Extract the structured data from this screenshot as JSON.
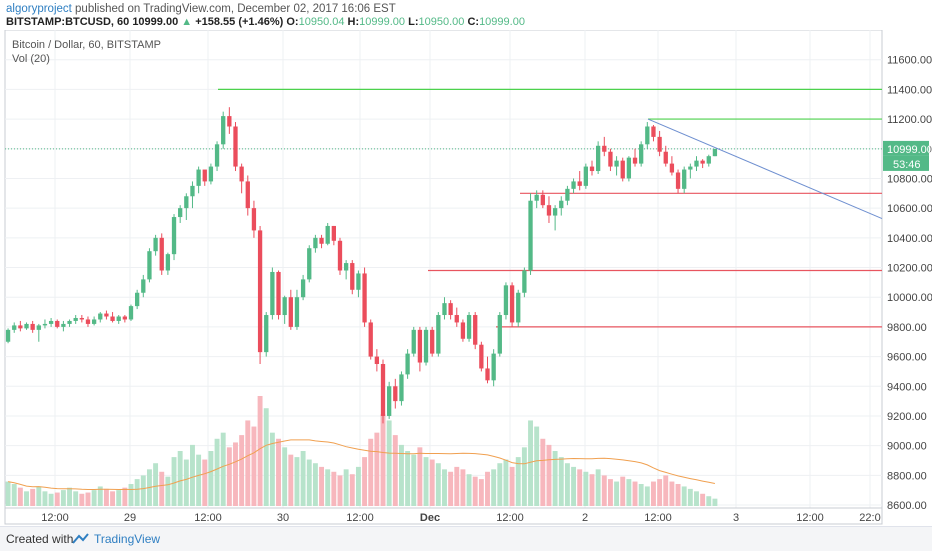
{
  "header": {
    "author": "algoryproject",
    "published_text": " published on TradingView.com, December 02, 2017 16:06 EST",
    "symbol": "BITSTAMP:BTCUSD, 60",
    "last": "10999.00",
    "change": "+158.55 (+1.46%)",
    "o_label": "O:",
    "o_val": "10950.04",
    "h_label": "H:",
    "h_val": "10999.00",
    "l_label": "L:",
    "l_val": "10950.00",
    "c_label": "C:",
    "c_val": "10999.00"
  },
  "legend": {
    "title": "Bitcoin / Dollar, 60, BITSTAMP",
    "volume": "Vol (20)"
  },
  "footer": {
    "created": "Created with",
    "brand": "TradingView"
  },
  "colors": {
    "up": "#53b987",
    "down": "#eb4d5c",
    "vol_up": "#b7e3cb",
    "vol_down": "#f7b7bd",
    "vol_ma": "#f0a050",
    "support": "#e8555f",
    "resistance": "#4cd24c",
    "trendline": "#6e8fd0",
    "price_line": "#53b987"
  },
  "chart_data": {
    "type": "candlestick",
    "title": "Bitcoin / Dollar, 60, BITSTAMP",
    "y_ticks": [
      "11600.00",
      "11400.00",
      "11200.00",
      "11000.00",
      "10800.00",
      "10600.00",
      "10400.00",
      "10200.00",
      "10000.00",
      "9800.00",
      "9600.00",
      "9400.00",
      "9200.00",
      "9000.00",
      "8800.00",
      "8600.00"
    ],
    "ylim": [
      8580,
      11800
    ],
    "x_ticks": [
      "12:00",
      "29",
      "12:00",
      "30",
      "12:00",
      "Dec",
      "12:00",
      "2",
      "12:00",
      "3",
      "12:00",
      "22:0"
    ],
    "last_price_label": "10999.00",
    "countdown_label": "53:46",
    "last_price": 10999,
    "horizontal_lines": [
      {
        "price": 11400,
        "color": "resistance"
      },
      {
        "price": 11200,
        "color": "resistance"
      },
      {
        "price": 10700,
        "color": "support"
      },
      {
        "price": 10180,
        "color": "support"
      },
      {
        "price": 9800,
        "color": "support"
      }
    ],
    "trendline": {
      "from_price": 11200,
      "to_price": 10530
    },
    "grid": true,
    "candles": [
      [
        9700,
        9790,
        9690,
        9780
      ],
      [
        9780,
        9830,
        9760,
        9810
      ],
      [
        9810,
        9840,
        9770,
        9790
      ],
      [
        9790,
        9830,
        9780,
        9820
      ],
      [
        9820,
        9840,
        9760,
        9780
      ],
      [
        9780,
        9820,
        9700,
        9810
      ],
      [
        9810,
        9850,
        9790,
        9820
      ],
      [
        9820,
        9860,
        9800,
        9840
      ],
      [
        9840,
        9850,
        9790,
        9800
      ],
      [
        9800,
        9840,
        9770,
        9820
      ],
      [
        9820,
        9850,
        9800,
        9840
      ],
      [
        9840,
        9880,
        9820,
        9860
      ],
      [
        9860,
        9880,
        9830,
        9850
      ],
      [
        9850,
        9870,
        9800,
        9820
      ],
      [
        9820,
        9870,
        9810,
        9850
      ],
      [
        9850,
        9900,
        9830,
        9890
      ],
      [
        9890,
        9910,
        9850,
        9870
      ],
      [
        9870,
        9900,
        9830,
        9840
      ],
      [
        9840,
        9880,
        9820,
        9870
      ],
      [
        9870,
        9880,
        9830,
        9850
      ],
      [
        9850,
        9950,
        9840,
        9940
      ],
      [
        9940,
        10050,
        9920,
        10030
      ],
      [
        10030,
        10150,
        10000,
        10120
      ],
      [
        10120,
        10330,
        10100,
        10310
      ],
      [
        10310,
        10420,
        10280,
        10400
      ],
      [
        10400,
        10430,
        10150,
        10180
      ],
      [
        10180,
        10300,
        10150,
        10290
      ],
      [
        10290,
        10560,
        10250,
        10540
      ],
      [
        10540,
        10620,
        10500,
        10600
      ],
      [
        10600,
        10700,
        10520,
        10680
      ],
      [
        10680,
        10780,
        10600,
        10750
      ],
      [
        10750,
        10880,
        10700,
        10860
      ],
      [
        10860,
        10850,
        10750,
        10780
      ],
      [
        10780,
        10900,
        10760,
        10880
      ],
      [
        10880,
        11050,
        10850,
        11030
      ],
      [
        11030,
        11250,
        11000,
        11220
      ],
      [
        11220,
        11280,
        11100,
        11150
      ],
      [
        11150,
        11180,
        10850,
        10880
      ],
      [
        10880,
        10900,
        10700,
        10780
      ],
      [
        10780,
        10820,
        10550,
        10600
      ],
      [
        10600,
        10650,
        10400,
        10450
      ],
      [
        10450,
        10480,
        9550,
        9630
      ],
      [
        9630,
        9900,
        9600,
        9880
      ],
      [
        9880,
        10200,
        9850,
        10170
      ],
      [
        10170,
        10180,
        9850,
        9880
      ],
      [
        9880,
        10010,
        9820,
        10000
      ],
      [
        10000,
        10050,
        9780,
        9800
      ],
      [
        9800,
        10050,
        9780,
        10000
      ],
      [
        10000,
        10150,
        9980,
        10120
      ],
      [
        10120,
        10350,
        10100,
        10330
      ],
      [
        10330,
        10420,
        10300,
        10400
      ],
      [
        10400,
        10420,
        10330,
        10360
      ],
      [
        10360,
        10500,
        10350,
        10480
      ],
      [
        10480,
        10480,
        10350,
        10380
      ],
      [
        10380,
        10400,
        10150,
        10180
      ],
      [
        10180,
        10250,
        10120,
        10230
      ],
      [
        10230,
        10250,
        10020,
        10050
      ],
      [
        10050,
        10180,
        10000,
        10160
      ],
      [
        10160,
        10200,
        9800,
        9830
      ],
      [
        9830,
        9850,
        9580,
        9600
      ],
      [
        9600,
        9650,
        9500,
        9550
      ],
      [
        9550,
        9580,
        9150,
        9200
      ],
      [
        9200,
        9430,
        9180,
        9400
      ],
      [
        9400,
        9450,
        9250,
        9300
      ],
      [
        9300,
        9500,
        9270,
        9480
      ],
      [
        9480,
        9650,
        9450,
        9620
      ],
      [
        9620,
        9800,
        9600,
        9780
      ],
      [
        9780,
        9800,
        9500,
        9560
      ],
      [
        9560,
        9800,
        9540,
        9780
      ],
      [
        9780,
        9800,
        9600,
        9620
      ],
      [
        9620,
        9900,
        9600,
        9880
      ],
      [
        9880,
        10000,
        9850,
        9960
      ],
      [
        9960,
        9980,
        9850,
        9880
      ],
      [
        9880,
        9930,
        9800,
        9830
      ],
      [
        9830,
        9850,
        9700,
        9720
      ],
      [
        9720,
        9900,
        9700,
        9880
      ],
      [
        9880,
        9900,
        9650,
        9680
      ],
      [
        9680,
        9700,
        9500,
        9520
      ],
      [
        9520,
        9600,
        9420,
        9440
      ],
      [
        9440,
        9650,
        9400,
        9620
      ],
      [
        9620,
        9900,
        9600,
        9880
      ],
      [
        9880,
        10100,
        9850,
        10080
      ],
      [
        10080,
        10100,
        9800,
        9830
      ],
      [
        9830,
        10050,
        9800,
        10030
      ],
      [
        10030,
        10200,
        10000,
        10180
      ],
      [
        10180,
        10700,
        10150,
        10650
      ],
      [
        10650,
        10720,
        10600,
        10690
      ],
      [
        10690,
        10720,
        10600,
        10620
      ],
      [
        10620,
        10680,
        10500,
        10550
      ],
      [
        10550,
        10620,
        10450,
        10600
      ],
      [
        10600,
        10680,
        10550,
        10650
      ],
      [
        10650,
        10750,
        10620,
        10730
      ],
      [
        10730,
        10800,
        10700,
        10780
      ],
      [
        10780,
        10850,
        10720,
        10750
      ],
      [
        10750,
        10900,
        10730,
        10880
      ],
      [
        10880,
        10920,
        10820,
        10850
      ],
      [
        10850,
        11050,
        10830,
        11020
      ],
      [
        11020,
        11080,
        10950,
        10980
      ],
      [
        10980,
        11000,
        10850,
        10880
      ],
      [
        10880,
        10950,
        10820,
        10920
      ],
      [
        10920,
        10940,
        10780,
        10800
      ],
      [
        10800,
        10950,
        10780,
        10940
      ],
      [
        10940,
        11000,
        10880,
        10900
      ],
      [
        10900,
        11050,
        10880,
        11030
      ],
      [
        11030,
        11180,
        11000,
        11150
      ],
      [
        11150,
        11160,
        11050,
        11080
      ],
      [
        11080,
        11120,
        10950,
        10980
      ],
      [
        10980,
        11020,
        10880,
        10900
      ],
      [
        10900,
        10950,
        10820,
        10840
      ],
      [
        10840,
        10860,
        10700,
        10730
      ],
      [
        10730,
        10880,
        10700,
        10860
      ],
      [
        10860,
        10900,
        10800,
        10880
      ],
      [
        10880,
        10950,
        10850,
        10920
      ],
      [
        10920,
        10930,
        10870,
        10900
      ],
      [
        10900,
        10960,
        10880,
        10950
      ],
      [
        10950,
        10999,
        10950,
        10999
      ]
    ],
    "volume": [
      20,
      18,
      15,
      12,
      14,
      16,
      12,
      10,
      11,
      13,
      15,
      12,
      10,
      11,
      13,
      16,
      14,
      12,
      13,
      15,
      18,
      22,
      25,
      30,
      35,
      28,
      24,
      40,
      45,
      38,
      50,
      42,
      38,
      45,
      55,
      60,
      48,
      52,
      58,
      70,
      65,
      90,
      80,
      60,
      55,
      48,
      42,
      40,
      45,
      38,
      35,
      32,
      30,
      28,
      25,
      30,
      26,
      32,
      40,
      55,
      60,
      75,
      70,
      58,
      50,
      45,
      42,
      48,
      40,
      38,
      35,
      30,
      28,
      32,
      30,
      26,
      24,
      22,
      28,
      30,
      35,
      38,
      32,
      40,
      48,
      70,
      65,
      55,
      50,
      45,
      40,
      35,
      32,
      30,
      28,
      26,
      30,
      25,
      22,
      20,
      24,
      22,
      20,
      18,
      16,
      20,
      22,
      25,
      20,
      18,
      16,
      14,
      12,
      10,
      8,
      6
    ],
    "volume_ma_label": "Vol (20)"
  }
}
